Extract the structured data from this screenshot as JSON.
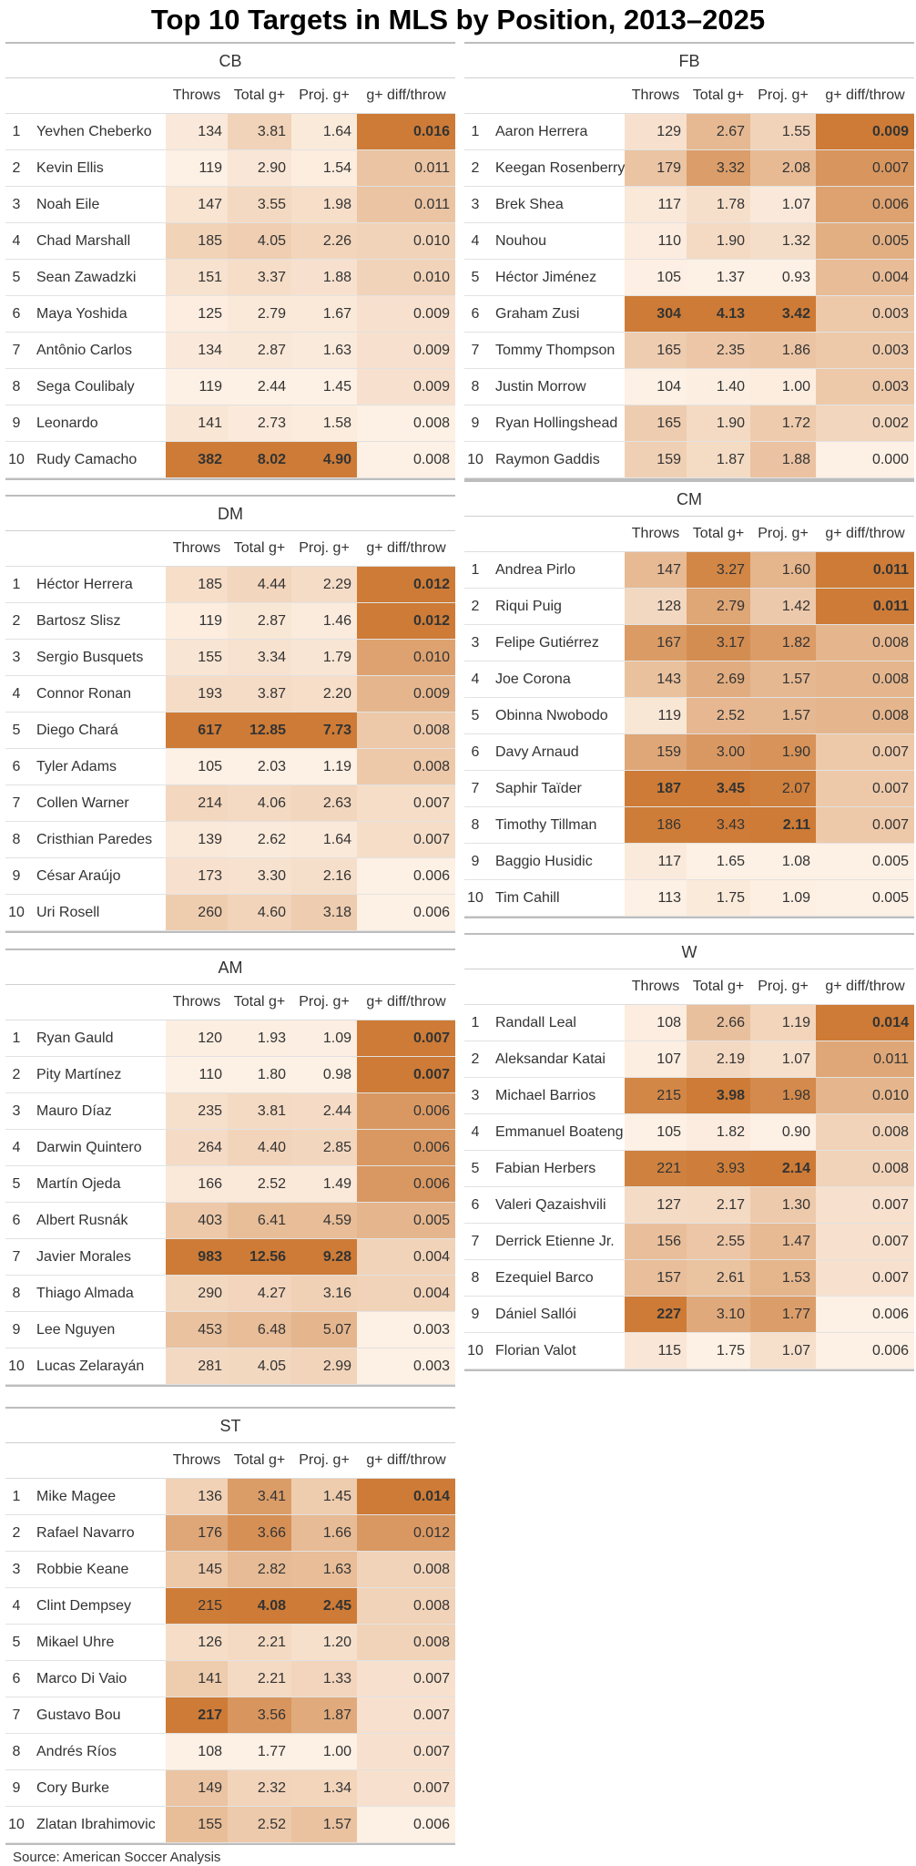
{
  "title": "Top 10 Targets in MLS by Position, 2013–2025",
  "source": "Source: American Soccer Analysis",
  "columns": [
    "Throws",
    "Total g+",
    "Proj. g+",
    "g+ diff/throw"
  ],
  "colors": {
    "low": "#fdf0e4",
    "high": "#cd7b36"
  },
  "chart_data": {
    "type": "table",
    "title": "Top 10 Targets in MLS by Position, 2013–2025",
    "columns": [
      "Throws",
      "Total g+",
      "Proj. g+",
      "g+ diff/throw"
    ],
    "panels": [
      {
        "position": "CB",
        "rows": [
          {
            "rank": "1",
            "player": "Yevhen Cheberko",
            "throws": "134",
            "total": "3.81",
            "proj": "1.64",
            "diff": "0.016"
          },
          {
            "rank": "2",
            "player": "Kevin Ellis",
            "throws": "119",
            "total": "2.90",
            "proj": "1.54",
            "diff": "0.011"
          },
          {
            "rank": "3",
            "player": "Noah Eile",
            "throws": "147",
            "total": "3.55",
            "proj": "1.98",
            "diff": "0.011"
          },
          {
            "rank": "4",
            "player": "Chad Marshall",
            "throws": "185",
            "total": "4.05",
            "proj": "2.26",
            "diff": "0.010"
          },
          {
            "rank": "5",
            "player": "Sean Zawadzki",
            "throws": "151",
            "total": "3.37",
            "proj": "1.88",
            "diff": "0.010"
          },
          {
            "rank": "6",
            "player": "Maya Yoshida",
            "throws": "125",
            "total": "2.79",
            "proj": "1.67",
            "diff": "0.009"
          },
          {
            "rank": "7",
            "player": "Antônio Carlos",
            "throws": "134",
            "total": "2.87",
            "proj": "1.63",
            "diff": "0.009"
          },
          {
            "rank": "8",
            "player": "Sega Coulibaly",
            "throws": "119",
            "total": "2.44",
            "proj": "1.45",
            "diff": "0.009"
          },
          {
            "rank": "9",
            "player": "Leonardo",
            "throws": "141",
            "total": "2.73",
            "proj": "1.58",
            "diff": "0.008"
          },
          {
            "rank": "10",
            "player": "Rudy Camacho",
            "throws": "382",
            "total": "8.02",
            "proj": "4.90",
            "diff": "0.008"
          }
        ]
      },
      {
        "position": "FB",
        "rows": [
          {
            "rank": "1",
            "player": "Aaron Herrera",
            "throws": "129",
            "total": "2.67",
            "proj": "1.55",
            "diff": "0.009"
          },
          {
            "rank": "2",
            "player": "Keegan Rosenberry",
            "throws": "179",
            "total": "3.32",
            "proj": "2.08",
            "diff": "0.007"
          },
          {
            "rank": "3",
            "player": "Brek Shea",
            "throws": "117",
            "total": "1.78",
            "proj": "1.07",
            "diff": "0.006"
          },
          {
            "rank": "4",
            "player": "Nouhou",
            "throws": "110",
            "total": "1.90",
            "proj": "1.32",
            "diff": "0.005"
          },
          {
            "rank": "5",
            "player": "Héctor Jiménez",
            "throws": "105",
            "total": "1.37",
            "proj": "0.93",
            "diff": "0.004"
          },
          {
            "rank": "6",
            "player": "Graham Zusi",
            "throws": "304",
            "total": "4.13",
            "proj": "3.42",
            "diff": "0.003"
          },
          {
            "rank": "7",
            "player": "Tommy Thompson",
            "throws": "165",
            "total": "2.35",
            "proj": "1.86",
            "diff": "0.003"
          },
          {
            "rank": "8",
            "player": "Justin Morrow",
            "throws": "104",
            "total": "1.40",
            "proj": "1.00",
            "diff": "0.003"
          },
          {
            "rank": "9",
            "player": "Ryan Hollingshead",
            "throws": "165",
            "total": "1.90",
            "proj": "1.72",
            "diff": "0.002"
          },
          {
            "rank": "10",
            "player": "Raymon Gaddis",
            "throws": "159",
            "total": "1.87",
            "proj": "1.88",
            "diff": "0.000"
          }
        ]
      },
      {
        "position": "DM",
        "rows": [
          {
            "rank": "1",
            "player": "Héctor Herrera",
            "throws": "185",
            "total": "4.44",
            "proj": "2.29",
            "diff": "0.012"
          },
          {
            "rank": "2",
            "player": "Bartosz Slisz",
            "throws": "119",
            "total": "2.87",
            "proj": "1.46",
            "diff": "0.012"
          },
          {
            "rank": "3",
            "player": "Sergio Busquets",
            "throws": "155",
            "total": "3.34",
            "proj": "1.79",
            "diff": "0.010"
          },
          {
            "rank": "4",
            "player": "Connor Ronan",
            "throws": "193",
            "total": "3.87",
            "proj": "2.20",
            "diff": "0.009"
          },
          {
            "rank": "5",
            "player": "Diego Chará",
            "throws": "617",
            "total": "12.85",
            "proj": "7.73",
            "diff": "0.008"
          },
          {
            "rank": "6",
            "player": "Tyler Adams",
            "throws": "105",
            "total": "2.03",
            "proj": "1.19",
            "diff": "0.008"
          },
          {
            "rank": "7",
            "player": "Collen Warner",
            "throws": "214",
            "total": "4.06",
            "proj": "2.63",
            "diff": "0.007"
          },
          {
            "rank": "8",
            "player": "Cristhian Paredes",
            "throws": "139",
            "total": "2.62",
            "proj": "1.64",
            "diff": "0.007"
          },
          {
            "rank": "9",
            "player": "César Araújo",
            "throws": "173",
            "total": "3.30",
            "proj": "2.16",
            "diff": "0.006"
          },
          {
            "rank": "10",
            "player": "Uri Rosell",
            "throws": "260",
            "total": "4.60",
            "proj": "3.18",
            "diff": "0.006"
          }
        ]
      },
      {
        "position": "CM",
        "rows": [
          {
            "rank": "1",
            "player": "Andrea Pirlo",
            "throws": "147",
            "total": "3.27",
            "proj": "1.60",
            "diff": "0.011"
          },
          {
            "rank": "2",
            "player": "Riqui Puig",
            "throws": "128",
            "total": "2.79",
            "proj": "1.42",
            "diff": "0.011"
          },
          {
            "rank": "3",
            "player": "Felipe Gutiérrez",
            "throws": "167",
            "total": "3.17",
            "proj": "1.82",
            "diff": "0.008"
          },
          {
            "rank": "4",
            "player": "Joe Corona",
            "throws": "143",
            "total": "2.69",
            "proj": "1.57",
            "diff": "0.008"
          },
          {
            "rank": "5",
            "player": "Obinna Nwobodo",
            "throws": "119",
            "total": "2.52",
            "proj": "1.57",
            "diff": "0.008"
          },
          {
            "rank": "6",
            "player": "Davy Arnaud",
            "throws": "159",
            "total": "3.00",
            "proj": "1.90",
            "diff": "0.007"
          },
          {
            "rank": "7",
            "player": "Saphir Taïder",
            "throws": "187",
            "total": "3.45",
            "proj": "2.07",
            "diff": "0.007"
          },
          {
            "rank": "8",
            "player": "Timothy Tillman",
            "throws": "186",
            "total": "3.43",
            "proj": "2.11",
            "diff": "0.007"
          },
          {
            "rank": "9",
            "player": "Baggio Husidic",
            "throws": "117",
            "total": "1.65",
            "proj": "1.08",
            "diff": "0.005"
          },
          {
            "rank": "10",
            "player": "Tim Cahill",
            "throws": "113",
            "total": "1.75",
            "proj": "1.09",
            "diff": "0.005"
          }
        ]
      },
      {
        "position": "AM",
        "rows": [
          {
            "rank": "1",
            "player": "Ryan Gauld",
            "throws": "120",
            "total": "1.93",
            "proj": "1.09",
            "diff": "0.007"
          },
          {
            "rank": "2",
            "player": "Pity Martínez",
            "throws": "110",
            "total": "1.80",
            "proj": "0.98",
            "diff": "0.007"
          },
          {
            "rank": "3",
            "player": "Mauro Díaz",
            "throws": "235",
            "total": "3.81",
            "proj": "2.44",
            "diff": "0.006"
          },
          {
            "rank": "4",
            "player": "Darwin Quintero",
            "throws": "264",
            "total": "4.40",
            "proj": "2.85",
            "diff": "0.006"
          },
          {
            "rank": "5",
            "player": "Martín Ojeda",
            "throws": "166",
            "total": "2.52",
            "proj": "1.49",
            "diff": "0.006"
          },
          {
            "rank": "6",
            "player": "Albert Rusnák",
            "throws": "403",
            "total": "6.41",
            "proj": "4.59",
            "diff": "0.005"
          },
          {
            "rank": "7",
            "player": "Javier Morales",
            "throws": "983",
            "total": "12.56",
            "proj": "9.28",
            "diff": "0.004"
          },
          {
            "rank": "8",
            "player": "Thiago Almada",
            "throws": "290",
            "total": "4.27",
            "proj": "3.16",
            "diff": "0.004"
          },
          {
            "rank": "9",
            "player": "Lee Nguyen",
            "throws": "453",
            "total": "6.48",
            "proj": "5.07",
            "diff": "0.003"
          },
          {
            "rank": "10",
            "player": "Lucas Zelarayán",
            "throws": "281",
            "total": "4.05",
            "proj": "2.99",
            "diff": "0.003"
          }
        ]
      },
      {
        "position": "W",
        "rows": [
          {
            "rank": "1",
            "player": "Randall Leal",
            "throws": "108",
            "total": "2.66",
            "proj": "1.19",
            "diff": "0.014"
          },
          {
            "rank": "2",
            "player": "Aleksandar Katai",
            "throws": "107",
            "total": "2.19",
            "proj": "1.07",
            "diff": "0.011"
          },
          {
            "rank": "3",
            "player": "Michael Barrios",
            "throws": "215",
            "total": "3.98",
            "proj": "1.98",
            "diff": "0.010"
          },
          {
            "rank": "4",
            "player": "Emmanuel Boateng",
            "throws": "105",
            "total": "1.82",
            "proj": "0.90",
            "diff": "0.008"
          },
          {
            "rank": "5",
            "player": "Fabian Herbers",
            "throws": "221",
            "total": "3.93",
            "proj": "2.14",
            "diff": "0.008"
          },
          {
            "rank": "6",
            "player": "Valeri Qazaishvili",
            "throws": "127",
            "total": "2.17",
            "proj": "1.30",
            "diff": "0.007"
          },
          {
            "rank": "7",
            "player": "Derrick Etienne Jr.",
            "throws": "156",
            "total": "2.55",
            "proj": "1.47",
            "diff": "0.007"
          },
          {
            "rank": "8",
            "player": "Ezequiel Barco",
            "throws": "157",
            "total": "2.61",
            "proj": "1.53",
            "diff": "0.007"
          },
          {
            "rank": "9",
            "player": "Dániel Sallói",
            "throws": "227",
            "total": "3.10",
            "proj": "1.77",
            "diff": "0.006"
          },
          {
            "rank": "10",
            "player": "Florian Valot",
            "throws": "115",
            "total": "1.75",
            "proj": "1.07",
            "diff": "0.006"
          }
        ]
      },
      {
        "position": "ST",
        "rows": [
          {
            "rank": "1",
            "player": "Mike Magee",
            "throws": "136",
            "total": "3.41",
            "proj": "1.45",
            "diff": "0.014"
          },
          {
            "rank": "2",
            "player": "Rafael Navarro",
            "throws": "176",
            "total": "3.66",
            "proj": "1.66",
            "diff": "0.012"
          },
          {
            "rank": "3",
            "player": "Robbie Keane",
            "throws": "145",
            "total": "2.82",
            "proj": "1.63",
            "diff": "0.008"
          },
          {
            "rank": "4",
            "player": "Clint Dempsey",
            "throws": "215",
            "total": "4.08",
            "proj": "2.45",
            "diff": "0.008"
          },
          {
            "rank": "5",
            "player": "Mikael Uhre",
            "throws": "126",
            "total": "2.21",
            "proj": "1.20",
            "diff": "0.008"
          },
          {
            "rank": "6",
            "player": "Marco Di Vaio",
            "throws": "141",
            "total": "2.21",
            "proj": "1.33",
            "diff": "0.007"
          },
          {
            "rank": "7",
            "player": "Gustavo Bou",
            "throws": "217",
            "total": "3.56",
            "proj": "1.87",
            "diff": "0.007"
          },
          {
            "rank": "8",
            "player": "Andrés Ríos",
            "throws": "108",
            "total": "1.77",
            "proj": "1.00",
            "diff": "0.007"
          },
          {
            "rank": "9",
            "player": "Cory Burke",
            "throws": "149",
            "total": "2.32",
            "proj": "1.34",
            "diff": "0.007"
          },
          {
            "rank": "10",
            "player": "Zlatan Ibrahimovic",
            "throws": "155",
            "total": "2.52",
            "proj": "1.57",
            "diff": "0.006"
          }
        ]
      }
    ]
  }
}
